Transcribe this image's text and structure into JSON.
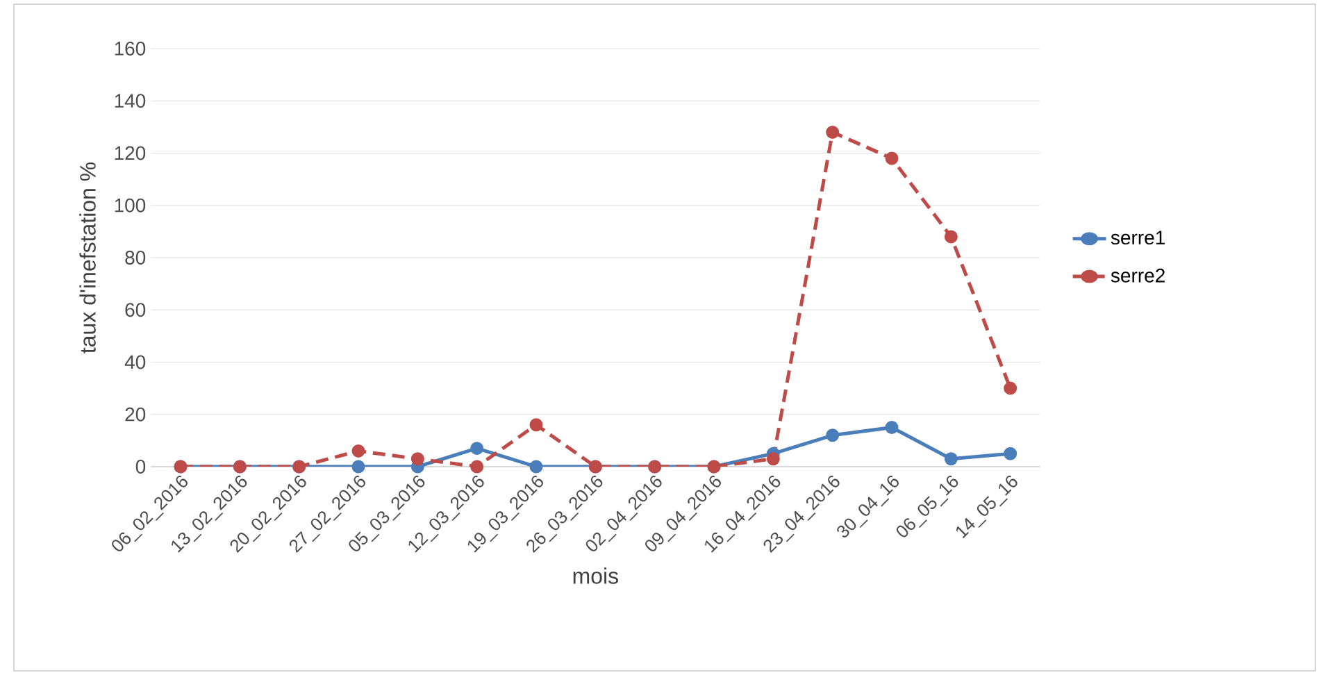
{
  "chart_data": {
    "type": "line",
    "xlabel": "mois",
    "ylabel": "taux d'inefstation %",
    "categories": [
      "06_02_2016",
      "13_02_2016",
      "20_02_2016",
      "27_02_2016",
      "05_03_2016",
      "12_03_2016",
      "19_03_2016",
      "26_03_2016",
      "02_04_2016",
      "09_04_2016",
      "16_04_2016",
      "23_04_2016",
      "30_04_16",
      "06_05_16",
      "14_05_16"
    ],
    "series": [
      {
        "name": "serre1",
        "color": "#4a7ebb",
        "line_style": "solid",
        "values": [
          0,
          0,
          0,
          0,
          0,
          7,
          0,
          0,
          0,
          0,
          5,
          12,
          15,
          3,
          5
        ]
      },
      {
        "name": "serre2",
        "color": "#be4b48",
        "line_style": "dashed",
        "values": [
          0,
          0,
          0,
          6,
          3,
          0,
          16,
          0,
          0,
          0,
          3,
          128,
          118,
          88,
          30
        ]
      }
    ],
    "ylim": [
      0,
      160
    ],
    "yticks": [
      0,
      20,
      40,
      60,
      80,
      100,
      120,
      140,
      160
    ],
    "grid": "y",
    "legend": "right",
    "marker": "circle"
  }
}
